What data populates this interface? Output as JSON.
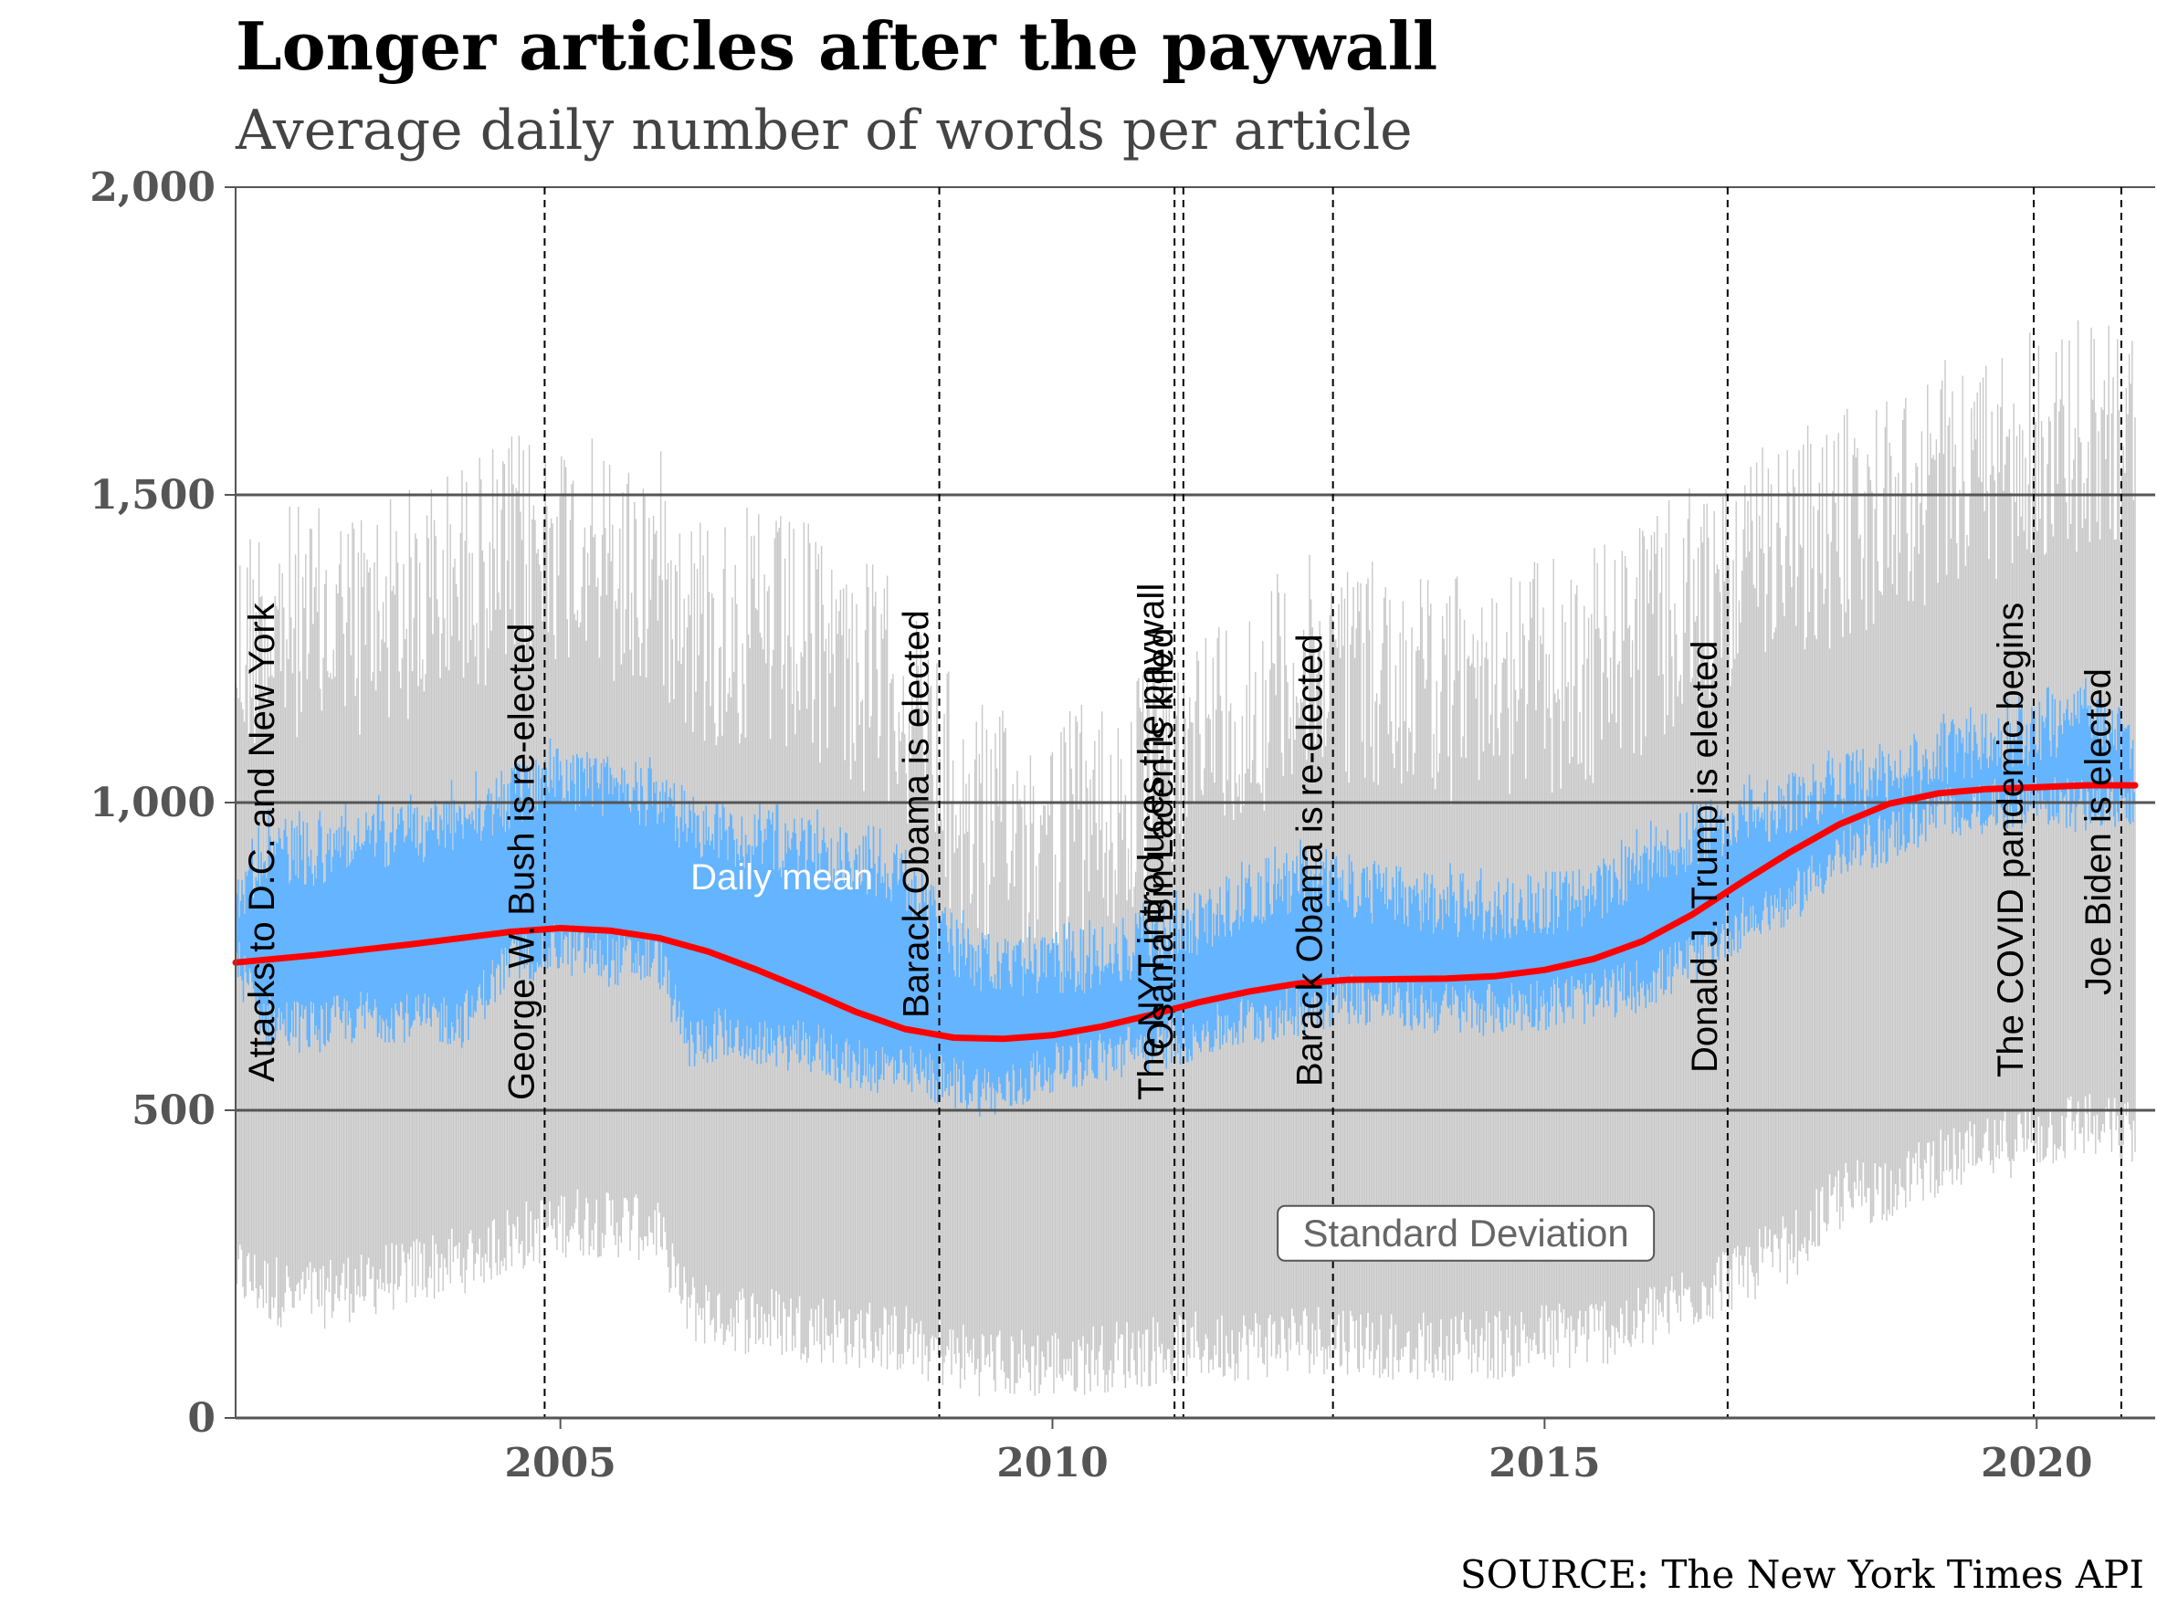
{
  "header": {
    "title": "Longer articles after the paywall",
    "subtitle": "Average daily number of words per article"
  },
  "footer": {
    "source": "SOURCE: The New York Times API"
  },
  "colors": {
    "std_band": "#c8c8c8",
    "daily_mean": "#64b4ff",
    "trend": "#ff0000",
    "gridline": "#555555",
    "event_line": "#000000"
  },
  "chart_data": {
    "type": "line",
    "xlim": [
      2001.7,
      2021.0
    ],
    "ylim": [
      0,
      2000
    ],
    "grid": true,
    "legend": "none",
    "x_ticks": [
      {
        "value": 2005,
        "label": "2005"
      },
      {
        "value": 2010,
        "label": "2010"
      },
      {
        "value": 2015,
        "label": "2015"
      },
      {
        "value": 2020,
        "label": "2020"
      }
    ],
    "y_ticks": [
      {
        "value": 0,
        "label": "0"
      },
      {
        "value": 500,
        "label": "500"
      },
      {
        "value": 1000,
        "label": "1,000"
      },
      {
        "value": 1500,
        "label": "1,500"
      },
      {
        "value": 2000,
        "label": "2,000"
      }
    ],
    "annotations": {
      "daily_mean": "Daily mean",
      "std_dev": "Standard Deviation"
    },
    "trend_series": {
      "x": [
        2001.7,
        2002.5,
        2003.5,
        2004.5,
        2005.0,
        2005.5,
        2006.0,
        2006.5,
        2007.0,
        2007.5,
        2008.0,
        2008.5,
        2009.0,
        2009.5,
        2010.0,
        2010.5,
        2011.0,
        2011.5,
        2012.0,
        2012.5,
        2013.0,
        2013.5,
        2014.0,
        2014.5,
        2015.0,
        2015.5,
        2016.0,
        2016.5,
        2017.0,
        2017.5,
        2018.0,
        2018.5,
        2019.0,
        2019.5,
        2020.0,
        2020.5,
        2021.0
      ],
      "y": [
        740,
        752,
        770,
        790,
        796,
        792,
        780,
        758,
        728,
        695,
        660,
        632,
        618,
        616,
        622,
        636,
        655,
        676,
        693,
        706,
        712,
        713,
        714,
        718,
        728,
        746,
        775,
        818,
        870,
        920,
        965,
        998,
        1015,
        1022,
        1025,
        1028,
        1028
      ]
    },
    "daily_mean_envelope": {
      "x": [
        2001.7,
        2002.0,
        2002.5,
        2003.0,
        2003.5,
        2004.0,
        2004.5,
        2005.0,
        2005.5,
        2006.0,
        2006.3,
        2006.6,
        2007.0,
        2007.5,
        2008.0,
        2008.5,
        2009.0,
        2009.5,
        2010.0,
        2010.5,
        2011.0,
        2011.5,
        2012.0,
        2012.5,
        2013.0,
        2013.5,
        2014.0,
        2014.5,
        2015.0,
        2015.5,
        2016.0,
        2016.5,
        2017.0,
        2017.5,
        2018.0,
        2018.5,
        2019.0,
        2019.5,
        2020.0,
        2020.5,
        2021.0
      ],
      "low": [
        700,
        600,
        590,
        610,
        610,
        600,
        700,
        720,
        700,
        700,
        560,
        580,
        570,
        560,
        530,
        520,
        500,
        480,
        530,
        540,
        560,
        580,
        600,
        620,
        640,
        630,
        620,
        620,
        630,
        640,
        660,
        700,
        760,
        800,
        870,
        900,
        940,
        950,
        960,
        950,
        960
      ],
      "high": [
        900,
        980,
        970,
        1000,
        1000,
        1030,
        1060,
        1100,
        1080,
        1060,
        1020,
        1010,
        990,
        980,
        960,
        930,
        820,
        780,
        790,
        800,
        830,
        860,
        900,
        930,
        920,
        900,
        890,
        880,
        890,
        900,
        950,
        1000,
        1030,
        1050,
        1080,
        1100,
        1130,
        1150,
        1170,
        1190,
        1120
      ]
    },
    "std_band_envelope": {
      "x": [
        2001.7,
        2002.0,
        2002.5,
        2003.0,
        2003.5,
        2004.0,
        2004.5,
        2005.0,
        2005.5,
        2006.0,
        2006.3,
        2006.6,
        2007.0,
        2007.5,
        2008.0,
        2008.5,
        2009.0,
        2009.5,
        2010.0,
        2010.5,
        2011.0,
        2011.5,
        2012.0,
        2012.5,
        2013.0,
        2013.5,
        2014.0,
        2014.5,
        2015.0,
        2015.5,
        2016.0,
        2016.5,
        2017.0,
        2017.5,
        2018.0,
        2018.5,
        2019.0,
        2019.5,
        2020.0,
        2020.5,
        2021.0
      ],
      "low": [
        180,
        150,
        140,
        160,
        180,
        200,
        230,
        260,
        260,
        250,
        120,
        110,
        100,
        90,
        80,
        70,
        40,
        30,
        30,
        40,
        50,
        60,
        60,
        70,
        70,
        60,
        60,
        60,
        70,
        80,
        100,
        140,
        180,
        220,
        300,
        320,
        360,
        380,
        400,
        420,
        400
      ],
      "high": [
        1450,
        1500,
        1480,
        1500,
        1520,
        1560,
        1600,
        1620,
        1580,
        1580,
        1500,
        1480,
        1480,
        1460,
        1420,
        1350,
        1200,
        1150,
        1150,
        1180,
        1230,
        1300,
        1350,
        1400,
        1420,
        1400,
        1380,
        1380,
        1400,
        1420,
        1460,
        1520,
        1560,
        1600,
        1640,
        1680,
        1720,
        1740,
        1780,
        1800,
        1780
      ]
    },
    "events": [
      {
        "date": 2001.7,
        "label": "Attacks to D.C. and New York"
      },
      {
        "date": 2004.84,
        "label": "George W. Bush is re-elected"
      },
      {
        "date": 2008.85,
        "label": "Barack Obama is elected"
      },
      {
        "date": 2011.24,
        "label": "The NYT introduces the paywall"
      },
      {
        "date": 2011.33,
        "label": "Osama Bin Laden is killed"
      },
      {
        "date": 2012.85,
        "label": "Barack Obama is re-elected"
      },
      {
        "date": 2016.86,
        "label": "Donald J. Trump is elected"
      },
      {
        "date": 2019.97,
        "label": "The COVID pandemic begins"
      },
      {
        "date": 2020.86,
        "label": "Joe Biden is elected"
      }
    ]
  }
}
